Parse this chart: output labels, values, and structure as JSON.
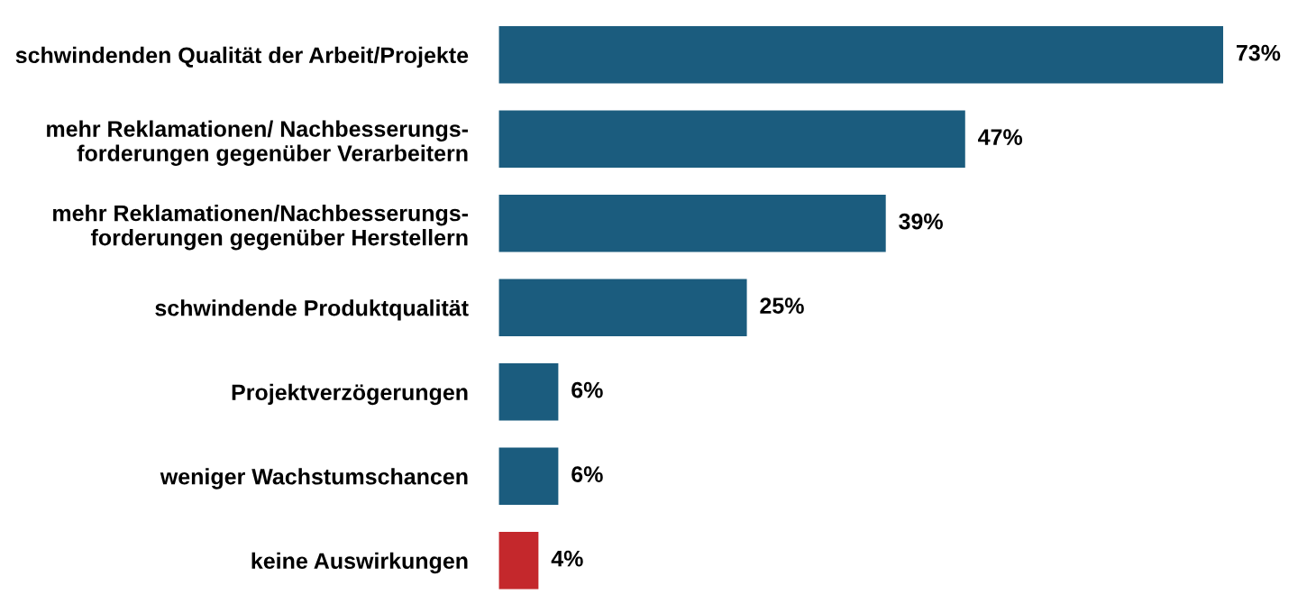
{
  "chart_data": {
    "type": "bar",
    "orientation": "horizontal",
    "categories": [
      "schwindenden Qualität der Arbeit/Projekte",
      "mehr Reklamationen/ Nachbesserungs-\nforderungen gegenüber Verarbeitern",
      "mehr Reklamationen/Nachbesserungs-\nforderungen gegenüber Herstellern",
      "schwindende Produktqualität",
      "Projektverzögerungen",
      "weniger Wachstumschancen",
      "keine Auswirkungen"
    ],
    "values": [
      73,
      47,
      39,
      25,
      6,
      6,
      4
    ],
    "colors": [
      "#1b5c7e",
      "#1b5c7e",
      "#1b5c7e",
      "#1b5c7e",
      "#1b5c7e",
      "#1b5c7e",
      "#c4282c"
    ],
    "value_labels": [
      "73%",
      "47%",
      "39%",
      "25%",
      "6%",
      "6%",
      "4%"
    ],
    "tick_labels": "y"
  }
}
